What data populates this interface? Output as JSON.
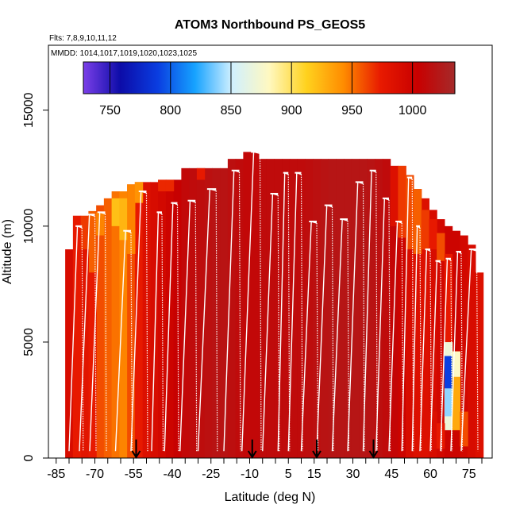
{
  "chart_data": {
    "type": "heatmap",
    "title": "ATOM3 Northbound PS_GEOS5",
    "annotations": [
      "Flts: 7,8,9,10,11,12",
      "MMDD: 1014,1017,1019,1020,1023,1025"
    ],
    "xlabel": "Latitude (deg N)",
    "ylabel": "Altitude (m)",
    "xlim": [
      -88,
      84
    ],
    "ylim": [
      0,
      17800
    ],
    "x_ticks": [
      -85,
      -70,
      -55,
      -40,
      -25,
      -10,
      5,
      15,
      30,
      45,
      60,
      75
    ],
    "y_ticks": [
      0,
      5000,
      10000,
      15000
    ],
    "colorbar": {
      "range": [
        728,
        1035
      ],
      "ticks": [
        750,
        800,
        850,
        900,
        950,
        1000
      ],
      "colors": [
        "#7b3fe8",
        "#0c0ca8",
        "#0a3de0",
        "#16a2ff",
        "#d0f0ff",
        "#fff8c0",
        "#ffd21e",
        "#ff8c00",
        "#e81a00",
        "#c80000",
        "#a52a2a"
      ]
    },
    "arrow_latitudes": [
      -54,
      -9,
      16,
      38
    ],
    "columns": [
      {
        "lat": -80,
        "top": 9000,
        "value": 990
      },
      {
        "lat": -77,
        "top": 10450,
        "value": 975
      },
      {
        "lat": -74,
        "top": 10450,
        "value": 965
      },
      {
        "lat": -71,
        "top": 10650,
        "value": 955
      },
      {
        "lat": -68,
        "top": 10900,
        "value": 960
      },
      {
        "lat": -65,
        "top": 11200,
        "value": 955
      },
      {
        "lat": -62,
        "top": 11500,
        "value": 950
      },
      {
        "lat": -59,
        "top": 11500,
        "value": 945
      },
      {
        "lat": -56,
        "top": 11800,
        "value": 960
      },
      {
        "lat": -53,
        "top": 11900,
        "value": 975
      },
      {
        "lat": -50,
        "top": 11900,
        "value": 985
      },
      {
        "lat": -47,
        "top": 11900,
        "value": 990
      },
      {
        "lat": -44,
        "top": 12000,
        "value": 995
      },
      {
        "lat": -41,
        "top": 12000,
        "value": 1000
      },
      {
        "lat": -38,
        "top": 12000,
        "value": 1005
      },
      {
        "lat": -35,
        "top": 12500,
        "value": 1010
      },
      {
        "lat": -32,
        "top": 12500,
        "value": 1012
      },
      {
        "lat": -29,
        "top": 12500,
        "value": 1014
      },
      {
        "lat": -26,
        "top": 12500,
        "value": 1016
      },
      {
        "lat": -23,
        "top": 12500,
        "value": 1018
      },
      {
        "lat": -20,
        "top": 12500,
        "value": 1018
      },
      {
        "lat": -17,
        "top": 12900,
        "value": 1015
      },
      {
        "lat": -14,
        "top": 12900,
        "value": 1012
      },
      {
        "lat": -11,
        "top": 13200,
        "value": 1010
      },
      {
        "lat": -8,
        "top": 13200,
        "value": 1010
      },
      {
        "lat": -5,
        "top": 12900,
        "value": 1012
      },
      {
        "lat": -2,
        "top": 12900,
        "value": 1012
      },
      {
        "lat": 1,
        "top": 12900,
        "value": 1012
      },
      {
        "lat": 4,
        "top": 12900,
        "value": 1012
      },
      {
        "lat": 7,
        "top": 12900,
        "value": 1012
      },
      {
        "lat": 10,
        "top": 12900,
        "value": 1012
      },
      {
        "lat": 13,
        "top": 12900,
        "value": 1014
      },
      {
        "lat": 16,
        "top": 12900,
        "value": 1016
      },
      {
        "lat": 19,
        "top": 12900,
        "value": 1018
      },
      {
        "lat": 22,
        "top": 12900,
        "value": 1020
      },
      {
        "lat": 25,
        "top": 12900,
        "value": 1020
      },
      {
        "lat": 28,
        "top": 12900,
        "value": 1020
      },
      {
        "lat": 31,
        "top": 12900,
        "value": 1020
      },
      {
        "lat": 34,
        "top": 12900,
        "value": 1020
      },
      {
        "lat": 37,
        "top": 12900,
        "value": 1018
      },
      {
        "lat": 40,
        "top": 12900,
        "value": 1015
      },
      {
        "lat": 43,
        "top": 12900,
        "value": 1012
      },
      {
        "lat": 46,
        "top": 12600,
        "value": 1008
      },
      {
        "lat": 49,
        "top": 12600,
        "value": 1000
      },
      {
        "lat": 52,
        "top": 12200,
        "value": 990
      },
      {
        "lat": 55,
        "top": 11600,
        "value": 985
      },
      {
        "lat": 58,
        "top": 11200,
        "value": 985
      },
      {
        "lat": 61,
        "top": 10700,
        "value": 990
      },
      {
        "lat": 64,
        "top": 10300,
        "value": 995
      },
      {
        "lat": 67,
        "top": 10000,
        "value": 1000
      },
      {
        "lat": 70,
        "top": 9800,
        "value": 1000
      },
      {
        "lat": 73,
        "top": 9600,
        "value": 995
      },
      {
        "lat": 76,
        "top": 9200,
        "value": 990
      },
      {
        "lat": 79,
        "top": 8000,
        "value": 985
      }
    ],
    "cells": [
      {
        "lat": -68,
        "alt0": 9600,
        "alt1": 10600,
        "value": 945
      },
      {
        "lat": -62,
        "alt0": 10000,
        "alt1": 11200,
        "value": 920
      },
      {
        "lat": -59,
        "alt0": 9400,
        "alt1": 11200,
        "value": 925
      },
      {
        "lat": -56,
        "alt0": 8800,
        "alt1": 11800,
        "value": 945
      },
      {
        "lat": -53,
        "alt0": 11000,
        "alt1": 11900,
        "value": 940
      },
      {
        "lat": -44,
        "alt0": 11500,
        "alt1": 12000,
        "value": 970
      },
      {
        "lat": -41,
        "alt0": 11500,
        "alt1": 12000,
        "value": 970
      },
      {
        "lat": -29,
        "alt0": 12000,
        "alt1": 12500,
        "value": 975
      },
      {
        "lat": -74,
        "alt0": 0,
        "alt1": 9000,
        "value": 980
      },
      {
        "lat": -71,
        "alt0": 0,
        "alt1": 8000,
        "value": 975
      },
      {
        "lat": 46,
        "alt0": 10000,
        "alt1": 12600,
        "value": 985
      },
      {
        "lat": 49,
        "alt0": 9500,
        "alt1": 12600,
        "value": 965
      },
      {
        "lat": 52,
        "alt0": 9000,
        "alt1": 12200,
        "value": 960
      },
      {
        "lat": 55,
        "alt0": 8800,
        "alt1": 11600,
        "value": 955
      },
      {
        "lat": 58,
        "alt0": 9000,
        "alt1": 10700,
        "value": 965
      },
      {
        "lat": 61,
        "alt0": 9000,
        "alt1": 10300,
        "value": 975
      },
      {
        "lat": 64,
        "alt0": 8500,
        "alt1": 9700,
        "value": 960
      },
      {
        "lat": 67,
        "alt0": 1200,
        "alt1": 5000,
        "value": 870
      },
      {
        "lat": 67,
        "alt0": 3000,
        "alt1": 4400,
        "value": 790
      },
      {
        "lat": 67,
        "alt0": 1800,
        "alt1": 3000,
        "value": 840
      },
      {
        "lat": 67,
        "alt0": 5000,
        "alt1": 8800,
        "value": 975
      },
      {
        "lat": 70,
        "alt0": 1200,
        "alt1": 4600,
        "value": 930
      },
      {
        "lat": 70,
        "alt0": 3500,
        "alt1": 4600,
        "value": 880
      },
      {
        "lat": 73,
        "alt0": 500,
        "alt1": 2000,
        "value": 960
      },
      {
        "lat": 61,
        "alt0": 400,
        "alt1": 2000,
        "value": 985
      },
      {
        "lat": 64,
        "alt0": 400,
        "alt1": 1500,
        "value": 975
      }
    ],
    "profiles": [
      {
        "lat0": -80,
        "lat1": -75,
        "topalt": 10000
      },
      {
        "lat0": -76,
        "lat1": -70,
        "topalt": 10500
      },
      {
        "lat0": -72,
        "lat1": -66,
        "topalt": 10600
      },
      {
        "lat0": -62,
        "lat1": -56,
        "topalt": 9800
      },
      {
        "lat0": -56,
        "lat1": -50,
        "topalt": 11500
      },
      {
        "lat0": -48,
        "lat1": -44,
        "topalt": 10600
      },
      {
        "lat0": -43,
        "lat1": -38,
        "topalt": 11000
      },
      {
        "lat0": -37,
        "lat1": -31,
        "topalt": 11100
      },
      {
        "lat0": -30,
        "lat1": -23,
        "topalt": 11600
      },
      {
        "lat0": -20,
        "lat1": -14,
        "topalt": 12400
      },
      {
        "lat0": -13,
        "lat1": -6,
        "topalt": 13200
      },
      {
        "lat0": -5,
        "lat1": 1,
        "topalt": 11400
      },
      {
        "lat0": 1,
        "lat1": 5,
        "topalt": 12300
      },
      {
        "lat0": 5,
        "lat1": 10,
        "topalt": 12300
      },
      {
        "lat0": 10,
        "lat1": 16,
        "topalt": 10200
      },
      {
        "lat0": 16,
        "lat1": 22,
        "topalt": 10900
      },
      {
        "lat0": 22,
        "lat1": 28,
        "topalt": 10300
      },
      {
        "lat0": 28,
        "lat1": 34,
        "topalt": 11900
      },
      {
        "lat0": 34,
        "lat1": 39,
        "topalt": 12400
      },
      {
        "lat0": 39,
        "lat1": 44,
        "topalt": 11200
      },
      {
        "lat0": 44,
        "lat1": 49,
        "topalt": 10200
      },
      {
        "lat0": 49,
        "lat1": 53,
        "topalt": 12100
      },
      {
        "lat0": 53,
        "lat1": 56,
        "topalt": 10000
      },
      {
        "lat0": 56,
        "lat1": 60,
        "topalt": 9000
      },
      {
        "lat0": 60,
        "lat1": 64,
        "topalt": 8500
      },
      {
        "lat0": 64,
        "lat1": 68,
        "topalt": 8600
      },
      {
        "lat0": 68,
        "lat1": 72,
        "topalt": 8900
      },
      {
        "lat0": 72,
        "lat1": 78,
        "topalt": 9000
      }
    ]
  }
}
